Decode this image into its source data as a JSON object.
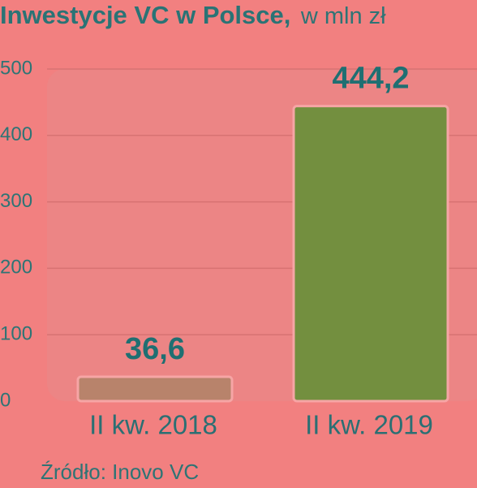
{
  "chart_data": {
    "type": "bar",
    "title": "Inwestycje VC w Polsce,",
    "subtitle": "w mln zł",
    "categories": [
      "II kw. 2018",
      "II kw. 2019"
    ],
    "values": [
      36.6,
      444.2
    ],
    "value_labels": [
      "36,6",
      "444,2"
    ],
    "colors": [
      "#b8836b",
      "#738f3f"
    ],
    "ylim": [
      0,
      500
    ],
    "yticks": [
      0,
      100,
      200,
      300,
      400,
      500
    ],
    "grid": true,
    "source": "Źródło: Inovo VC"
  }
}
